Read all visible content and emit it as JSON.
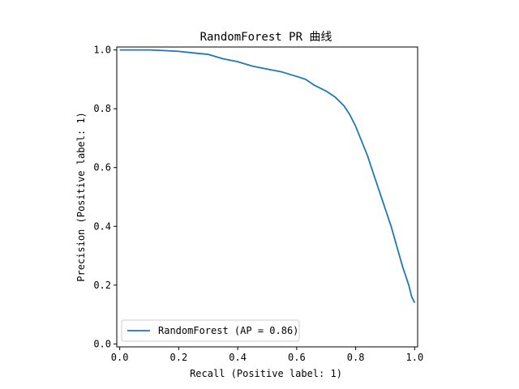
{
  "chart_data": {
    "type": "line",
    "title": "RandomForest PR 曲线",
    "xlabel": "Recall (Positive label: 1)",
    "ylabel": "Precision (Positive label: 1)",
    "xlim": [
      -0.01,
      1.01
    ],
    "ylim": [
      -0.01,
      1.01
    ],
    "xticks": [
      "0.0",
      "0.2",
      "0.4",
      "0.6",
      "0.8",
      "1.0"
    ],
    "yticks": [
      "0.0",
      "0.2",
      "0.4",
      "0.6",
      "0.8",
      "1.0"
    ],
    "grid": false,
    "legend_position": "lower-left",
    "series": [
      {
        "name": "RandomForest (AP = 0.86)",
        "color": "#1f77b4",
        "x": [
          0.0,
          0.02,
          0.05,
          0.1,
          0.15,
          0.2,
          0.25,
          0.3,
          0.35,
          0.4,
          0.45,
          0.5,
          0.55,
          0.6,
          0.63,
          0.66,
          0.7,
          0.73,
          0.76,
          0.78,
          0.8,
          0.82,
          0.84,
          0.86,
          0.88,
          0.9,
          0.92,
          0.94,
          0.96,
          0.98,
          0.99,
          1.0,
          1.0
        ],
        "y": [
          1.0,
          1.0,
          1.0,
          1.0,
          0.998,
          0.995,
          0.99,
          0.985,
          0.97,
          0.96,
          0.945,
          0.935,
          0.925,
          0.91,
          0.9,
          0.88,
          0.86,
          0.84,
          0.81,
          0.78,
          0.74,
          0.69,
          0.64,
          0.58,
          0.52,
          0.46,
          0.4,
          0.33,
          0.26,
          0.2,
          0.16,
          0.14,
          0.14
        ]
      }
    ]
  }
}
